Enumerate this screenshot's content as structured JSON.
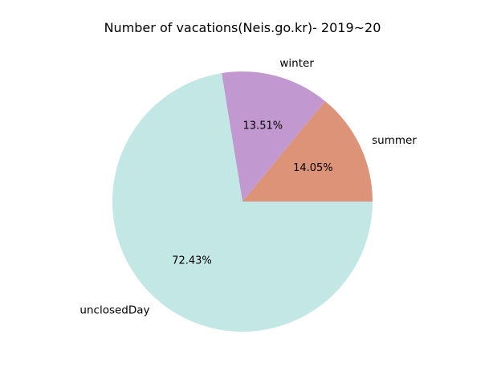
{
  "chart_data": {
    "type": "pie",
    "title": "Number of vacations(Neis.go.kr)- 2019~20",
    "slices": [
      {
        "label": "summer",
        "value": 14.05,
        "pct_label": "14.05%",
        "color": "#dd9377"
      },
      {
        "label": "winter",
        "value": 13.51,
        "pct_label": "13.51%",
        "color": "#c198cf"
      },
      {
        "label": "unclosedDay",
        "value": 72.43,
        "pct_label": "72.43%",
        "color": "#c2e7e4"
      }
    ]
  }
}
